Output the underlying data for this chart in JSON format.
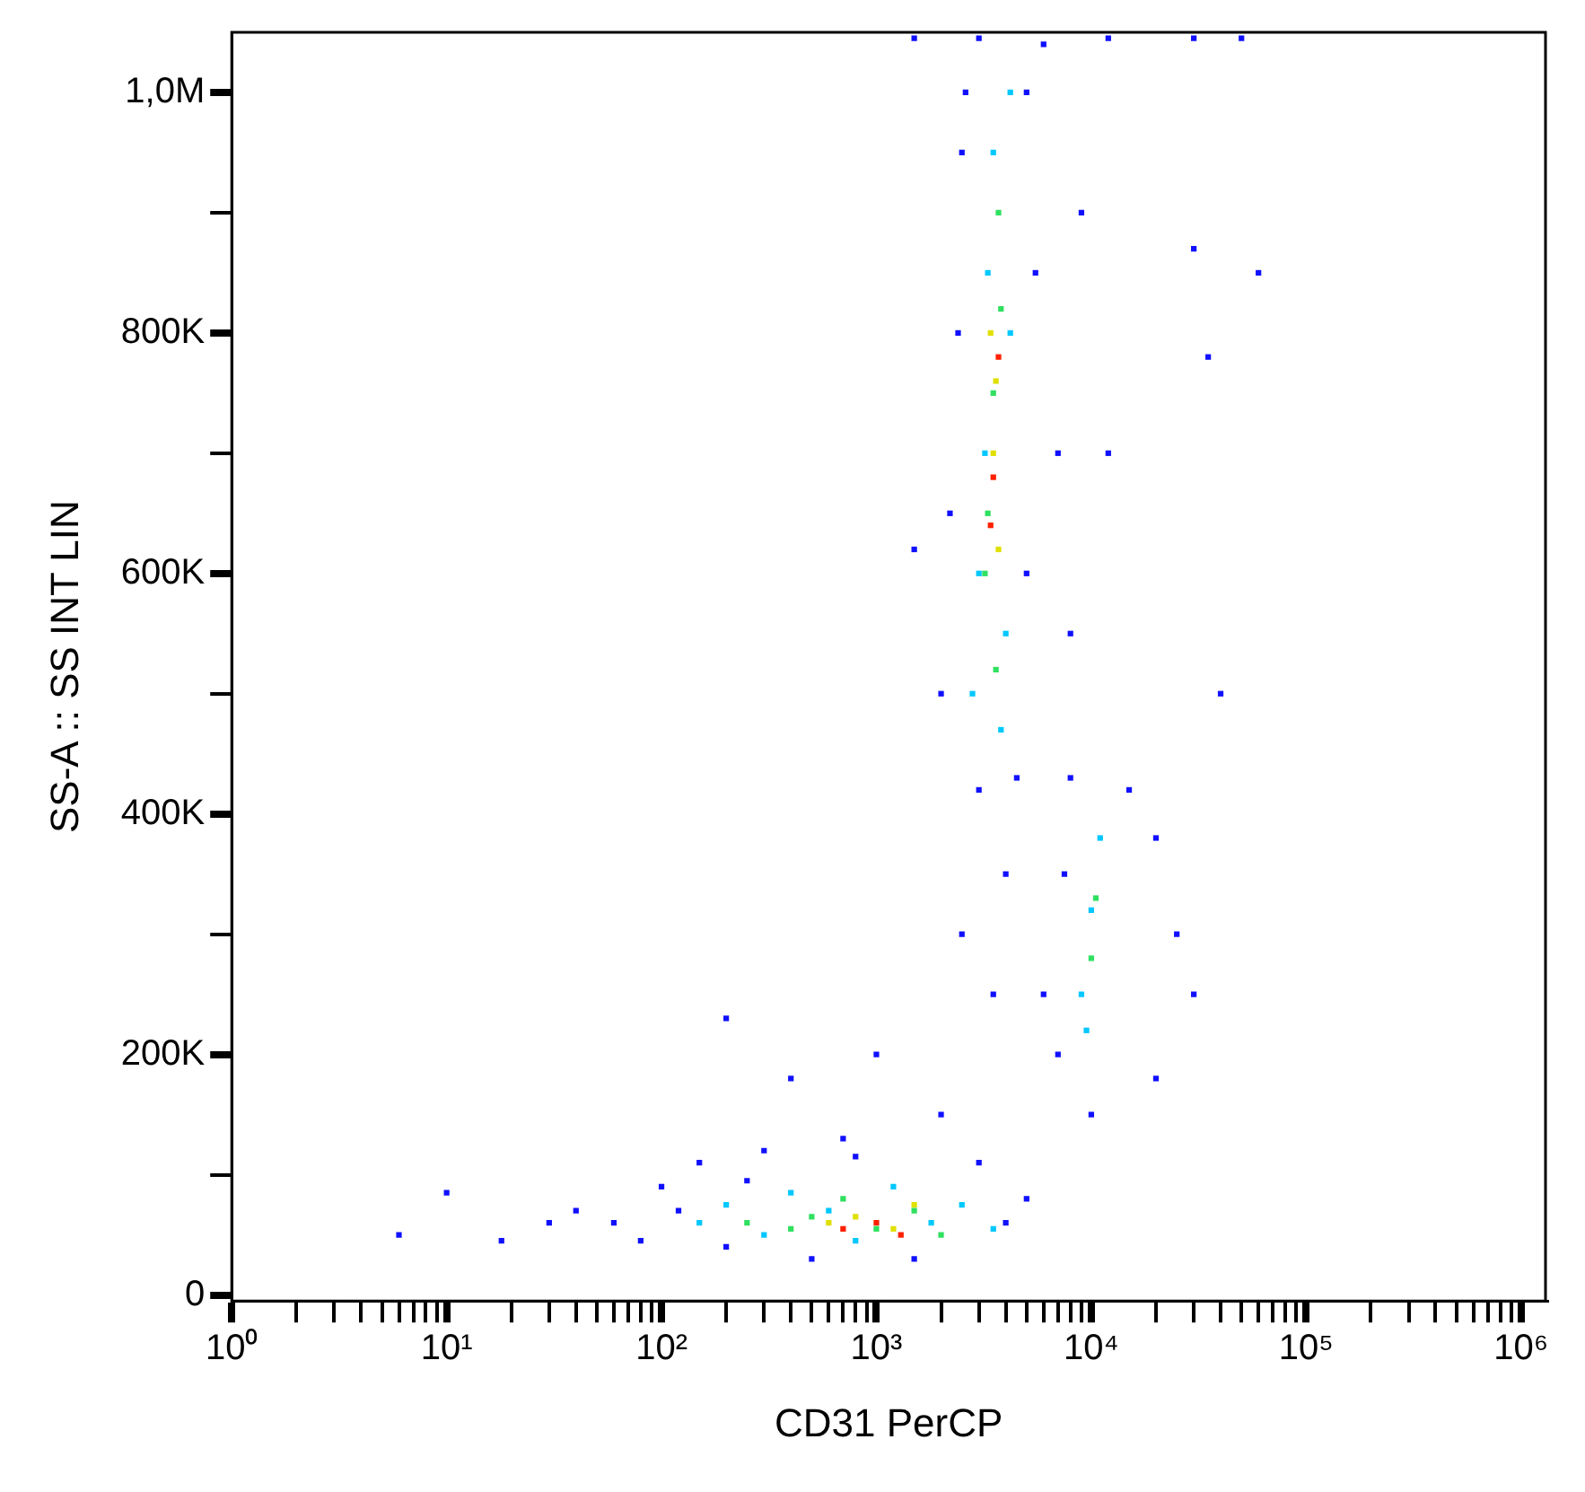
{
  "chart_data": {
    "type": "scatter",
    "xlabel": "CD31 PerCP",
    "ylabel": "SS-A :: SS INT LIN",
    "log": "x",
    "grid": false,
    "legend": false,
    "marker": "square",
    "xlim": [
      1,
      1300000
    ],
    "ylim": [
      -5000,
      1050000
    ],
    "xticks": [
      {
        "value": 1,
        "label": "10⁰"
      },
      {
        "value": 2,
        "label": null
      },
      {
        "value": 3,
        "label": null
      },
      {
        "value": 4,
        "label": null
      },
      {
        "value": 5,
        "label": null
      },
      {
        "value": 6,
        "label": null
      },
      {
        "value": 7,
        "label": null
      },
      {
        "value": 8,
        "label": null
      },
      {
        "value": 9,
        "label": null
      },
      {
        "value": 10,
        "label": "10¹"
      },
      {
        "value": 20,
        "label": null
      },
      {
        "value": 30,
        "label": null
      },
      {
        "value": 40,
        "label": null
      },
      {
        "value": 50,
        "label": null
      },
      {
        "value": 60,
        "label": null
      },
      {
        "value": 70,
        "label": null
      },
      {
        "value": 80,
        "label": null
      },
      {
        "value": 90,
        "label": null
      },
      {
        "value": 100,
        "label": "10²"
      },
      {
        "value": 200,
        "label": null
      },
      {
        "value": 300,
        "label": null
      },
      {
        "value": 400,
        "label": null
      },
      {
        "value": 500,
        "label": null
      },
      {
        "value": 600,
        "label": null
      },
      {
        "value": 700,
        "label": null
      },
      {
        "value": 800,
        "label": null
      },
      {
        "value": 900,
        "label": null
      },
      {
        "value": 1000,
        "label": "10³"
      },
      {
        "value": 2000,
        "label": null
      },
      {
        "value": 3000,
        "label": null
      },
      {
        "value": 4000,
        "label": null
      },
      {
        "value": 5000,
        "label": null
      },
      {
        "value": 6000,
        "label": null
      },
      {
        "value": 7000,
        "label": null
      },
      {
        "value": 8000,
        "label": null
      },
      {
        "value": 9000,
        "label": null
      },
      {
        "value": 10000,
        "label": "10⁴"
      },
      {
        "value": 20000,
        "label": null
      },
      {
        "value": 30000,
        "label": null
      },
      {
        "value": 40000,
        "label": null
      },
      {
        "value": 50000,
        "label": null
      },
      {
        "value": 60000,
        "label": null
      },
      {
        "value": 70000,
        "label": null
      },
      {
        "value": 80000,
        "label": null
      },
      {
        "value": 90000,
        "label": null
      },
      {
        "value": 100000,
        "label": "10⁵"
      },
      {
        "value": 200000,
        "label": null
      },
      {
        "value": 300000,
        "label": null
      },
      {
        "value": 400000,
        "label": null
      },
      {
        "value": 500000,
        "label": null
      },
      {
        "value": 600000,
        "label": null
      },
      {
        "value": 700000,
        "label": null
      },
      {
        "value": 800000,
        "label": null
      },
      {
        "value": 900000,
        "label": null
      },
      {
        "value": 1000000,
        "label": "10⁶"
      }
    ],
    "yticks": [
      0,
      {
        "value": 100000,
        "label": null
      },
      {
        "value": 200000,
        "label": "200K"
      },
      {
        "value": 300000,
        "label": null
      },
      {
        "value": 400000,
        "label": "400K"
      },
      {
        "value": 500000,
        "label": null
      },
      {
        "value": 600000,
        "label": "600K"
      },
      {
        "value": 700000,
        "label": null
      },
      {
        "value": 800000,
        "label": "800K"
      },
      {
        "value": 900000,
        "label": null
      },
      {
        "value": 1000000,
        "label": "1,0M"
      }
    ],
    "series": [
      {
        "color": "#1010ff",
        "x": [
          60,
          80,
          100,
          150,
          200,
          300,
          500,
          800,
          1500,
          3000,
          4000,
          5000,
          120,
          250,
          6,
          10,
          18,
          40,
          30,
          700,
          400,
          1000,
          2000,
          200,
          2000,
          2200,
          2400,
          2500,
          2600,
          3000,
          4500,
          5000,
          5500,
          6000,
          5000,
          7000,
          8000,
          2500,
          3500,
          4000,
          9000,
          1500,
          12000,
          7000,
          7500,
          8000,
          15000,
          20000,
          25000,
          30000,
          20000,
          10000,
          6000,
          40000,
          35000,
          30000,
          60000,
          1500,
          3000,
          12000,
          30000,
          50000
        ],
        "values": [
          60000,
          45000,
          90000,
          110000,
          40000,
          120000,
          30000,
          115000,
          30000,
          110000,
          60000,
          80000,
          70000,
          95000,
          50000,
          85000,
          45000,
          70000,
          60000,
          130000,
          180000,
          200000,
          150000,
          230000,
          500000,
          650000,
          800000,
          950000,
          1000000,
          420000,
          430000,
          600000,
          850000,
          1040000,
          1000000,
          700000,
          550000,
          300000,
          250000,
          350000,
          900000,
          620000,
          700000,
          200000,
          350000,
          430000,
          420000,
          380000,
          300000,
          250000,
          180000,
          150000,
          250000,
          500000,
          780000,
          870000,
          850000,
          1045000,
          1045000,
          1045000,
          1045000,
          1045000
        ]
      },
      {
        "color": "#00c8ff",
        "x": [
          150,
          200,
          300,
          400,
          600,
          800,
          1200,
          1800,
          2500,
          3500,
          2800,
          3000,
          3200,
          3300,
          3500,
          4200,
          4200,
          4000,
          3800,
          9000,
          10000,
          11000,
          9500
        ],
        "values": [
          60000,
          75000,
          50000,
          85000,
          70000,
          45000,
          90000,
          60000,
          75000,
          55000,
          500000,
          600000,
          700000,
          850000,
          950000,
          1000000,
          800000,
          550000,
          470000,
          250000,
          320000,
          380000,
          220000
        ]
      },
      {
        "color": "#30e060",
        "x": [
          250,
          500,
          700,
          1000,
          1500,
          2000,
          400,
          3200,
          3500,
          3700,
          3300,
          3800,
          3600,
          10000,
          10500
        ],
        "values": [
          60000,
          65000,
          80000,
          55000,
          70000,
          50000,
          55000,
          600000,
          750000,
          900000,
          650000,
          820000,
          520000,
          280000,
          330000
        ]
      },
      {
        "color": "#e0e000",
        "x": [
          800,
          1200,
          1500,
          600,
          3500,
          3400,
          3700,
          3600
        ],
        "values": [
          65000,
          55000,
          75000,
          60000,
          700000,
          800000,
          620000,
          760000
        ]
      },
      {
        "color": "#ff2000",
        "x": [
          1000,
          1300,
          700,
          3500,
          3700,
          3400
        ],
        "values": [
          60000,
          50000,
          55000,
          680000,
          780000,
          640000
        ]
      }
    ]
  }
}
